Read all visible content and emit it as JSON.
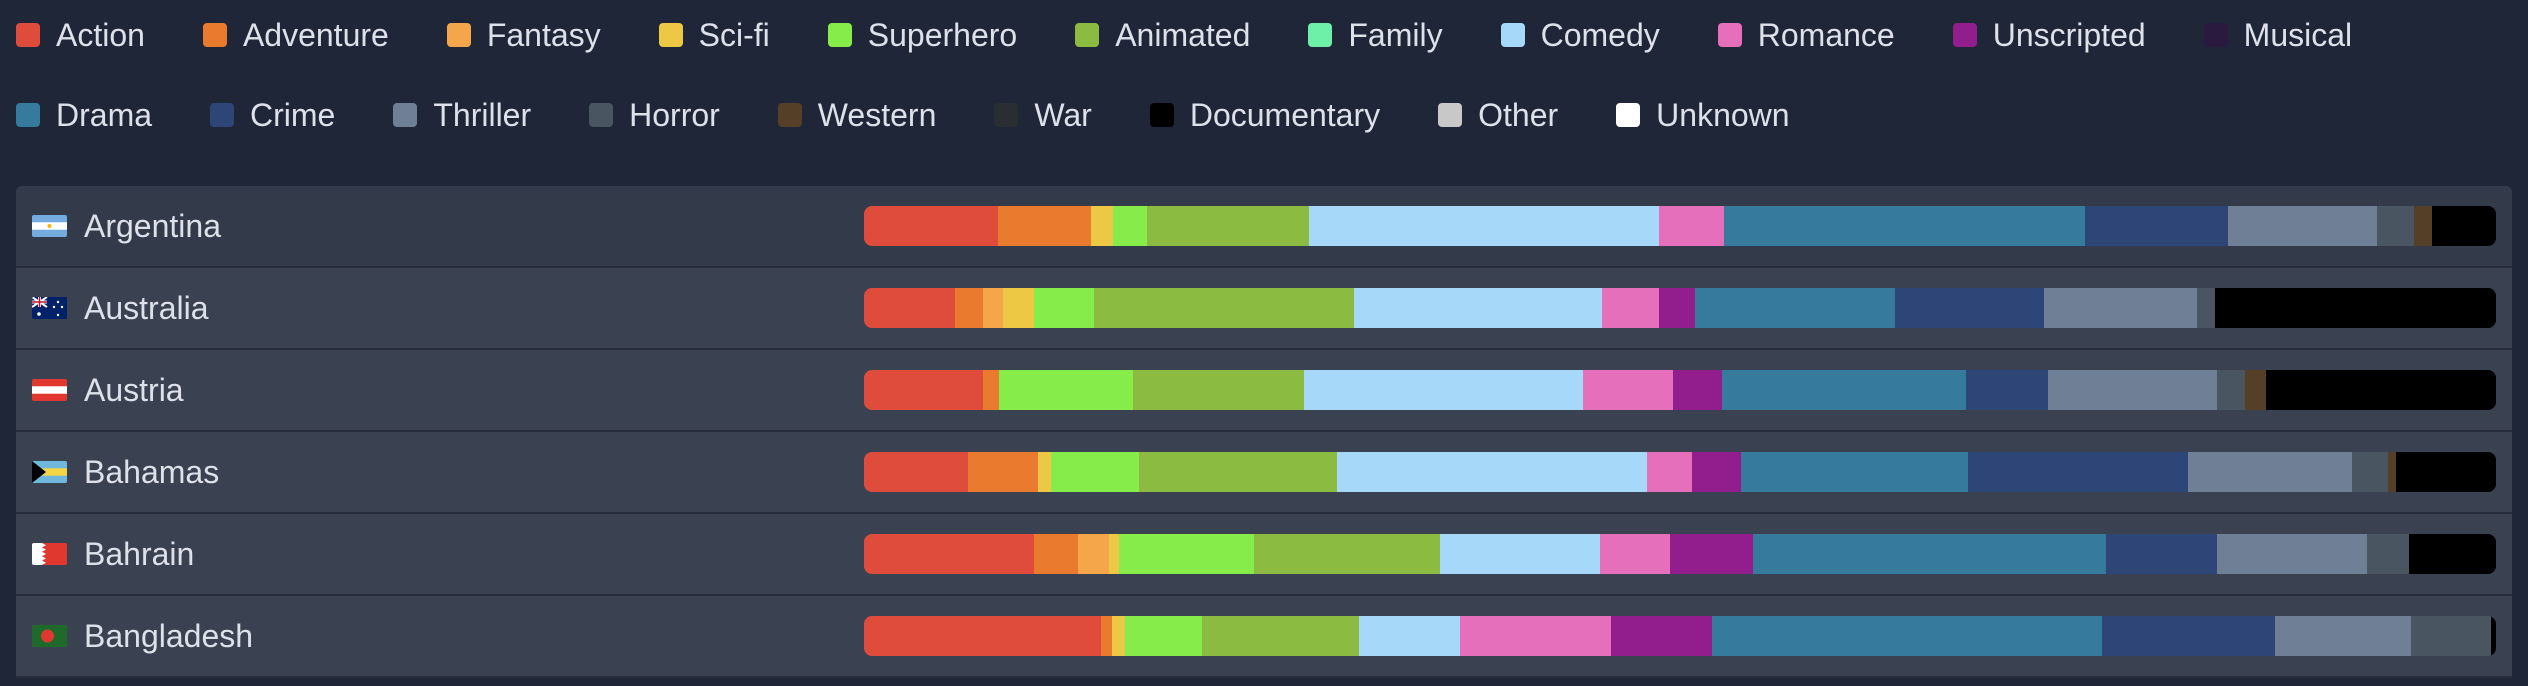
{
  "legend": [
    {
      "label": "Action",
      "color": "#e04c3c"
    },
    {
      "label": "Adventure",
      "color": "#e97a2e"
    },
    {
      "label": "Fantasy",
      "color": "#f5a64a"
    },
    {
      "label": "Sci-fi",
      "color": "#ecc844"
    },
    {
      "label": "Superhero",
      "color": "#86ec4a"
    },
    {
      "label": "Animated",
      "color": "#8cbb42"
    },
    {
      "label": "Family",
      "color": "#6ff0a8"
    },
    {
      "label": "Comedy",
      "color": "#a6d8fa"
    },
    {
      "label": "Romance",
      "color": "#e56fbb"
    },
    {
      "label": "Unscripted",
      "color": "#921e8e"
    },
    {
      "label": "Musical",
      "color": "#2b1a40"
    },
    {
      "label": "Drama",
      "color": "#367a9e"
    },
    {
      "label": "Crime",
      "color": "#2d4577"
    },
    {
      "label": "Thriller",
      "color": "#6f7f96"
    },
    {
      "label": "Horror",
      "color": "#4a5562"
    },
    {
      "label": "Western",
      "color": "#553f26"
    },
    {
      "label": "War",
      "color": "#2a2d31"
    },
    {
      "label": "Documentary",
      "color": "#000000"
    },
    {
      "label": "Other",
      "color": "#c8c8c8"
    },
    {
      "label": "Unknown",
      "color": "#ffffff"
    }
  ],
  "chart_data": {
    "type": "bar",
    "orientation": "horizontal-stacked-100",
    "title": "",
    "categories": [
      "Argentina",
      "Australia",
      "Austria",
      "Bahamas",
      "Bahrain",
      "Bangladesh"
    ],
    "unit": "percent",
    "series": [
      {
        "name": "Action",
        "values": [
          8.2,
          5.6,
          7.3,
          6.4,
          10.4,
          14.5
        ]
      },
      {
        "name": "Adventure",
        "values": [
          5.7,
          1.7,
          1.0,
          4.3,
          2.7,
          0.7
        ]
      },
      {
        "name": "Fantasy",
        "values": [
          0,
          1.2,
          0,
          0,
          1.9,
          0
        ]
      },
      {
        "name": "Sci-fi",
        "values": [
          1.3,
          1.9,
          0,
          0.8,
          0.6,
          0.8
        ]
      },
      {
        "name": "Superhero",
        "values": [
          2.1,
          3.7,
          8.2,
          5.4,
          8.3,
          4.7
        ]
      },
      {
        "name": "Animated",
        "values": [
          9.9,
          15.9,
          10.5,
          12.1,
          11.4,
          9.6
        ]
      },
      {
        "name": "Family",
        "values": [
          0,
          0,
          0,
          0,
          0,
          0
        ]
      },
      {
        "name": "Comedy",
        "values": [
          21.4,
          15.2,
          17.1,
          19.0,
          9.8,
          6.2
        ]
      },
      {
        "name": "Romance",
        "values": [
          4.0,
          3.5,
          5.5,
          2.8,
          4.3,
          9.2
        ]
      },
      {
        "name": "Unscripted",
        "values": [
          0,
          2.2,
          3.0,
          3.0,
          5.1,
          6.2
        ]
      },
      {
        "name": "Musical",
        "values": [
          0,
          0,
          0,
          0,
          0,
          0
        ]
      },
      {
        "name": "Drama",
        "values": [
          22.1,
          12.3,
          15.0,
          13.9,
          21.6,
          23.9
        ]
      },
      {
        "name": "Crime",
        "values": [
          8.7,
          9.1,
          5.0,
          13.5,
          6.8,
          10.6
        ]
      },
      {
        "name": "Thriller",
        "values": [
          9.1,
          9.4,
          10.4,
          10.1,
          9.2,
          8.3
        ]
      },
      {
        "name": "Horror",
        "values": [
          2.3,
          1.1,
          1.7,
          2.2,
          2.6,
          4.9
        ]
      },
      {
        "name": "Western",
        "values": [
          1.1,
          0,
          1.3,
          0.5,
          0,
          0
        ]
      },
      {
        "name": "War",
        "values": [
          0,
          0,
          0,
          0,
          0,
          0
        ]
      },
      {
        "name": "Documentary",
        "values": [
          3.9,
          17.2,
          14.1,
          6.1,
          5.3,
          0.3
        ]
      },
      {
        "name": "Other",
        "values": [
          0,
          0,
          0,
          0,
          0,
          0
        ]
      },
      {
        "name": "Unknown",
        "values": [
          0,
          0,
          0,
          0,
          0,
          0
        ]
      }
    ],
    "legend_position": "top"
  },
  "rows": [
    {
      "country": "Argentina",
      "flag": "argentina"
    },
    {
      "country": "Australia",
      "flag": "australia"
    },
    {
      "country": "Austria",
      "flag": "austria"
    },
    {
      "country": "Bahamas",
      "flag": "bahamas"
    },
    {
      "country": "Bahrain",
      "flag": "bahrain"
    },
    {
      "country": "Bangladesh",
      "flag": "bangladesh"
    }
  ]
}
